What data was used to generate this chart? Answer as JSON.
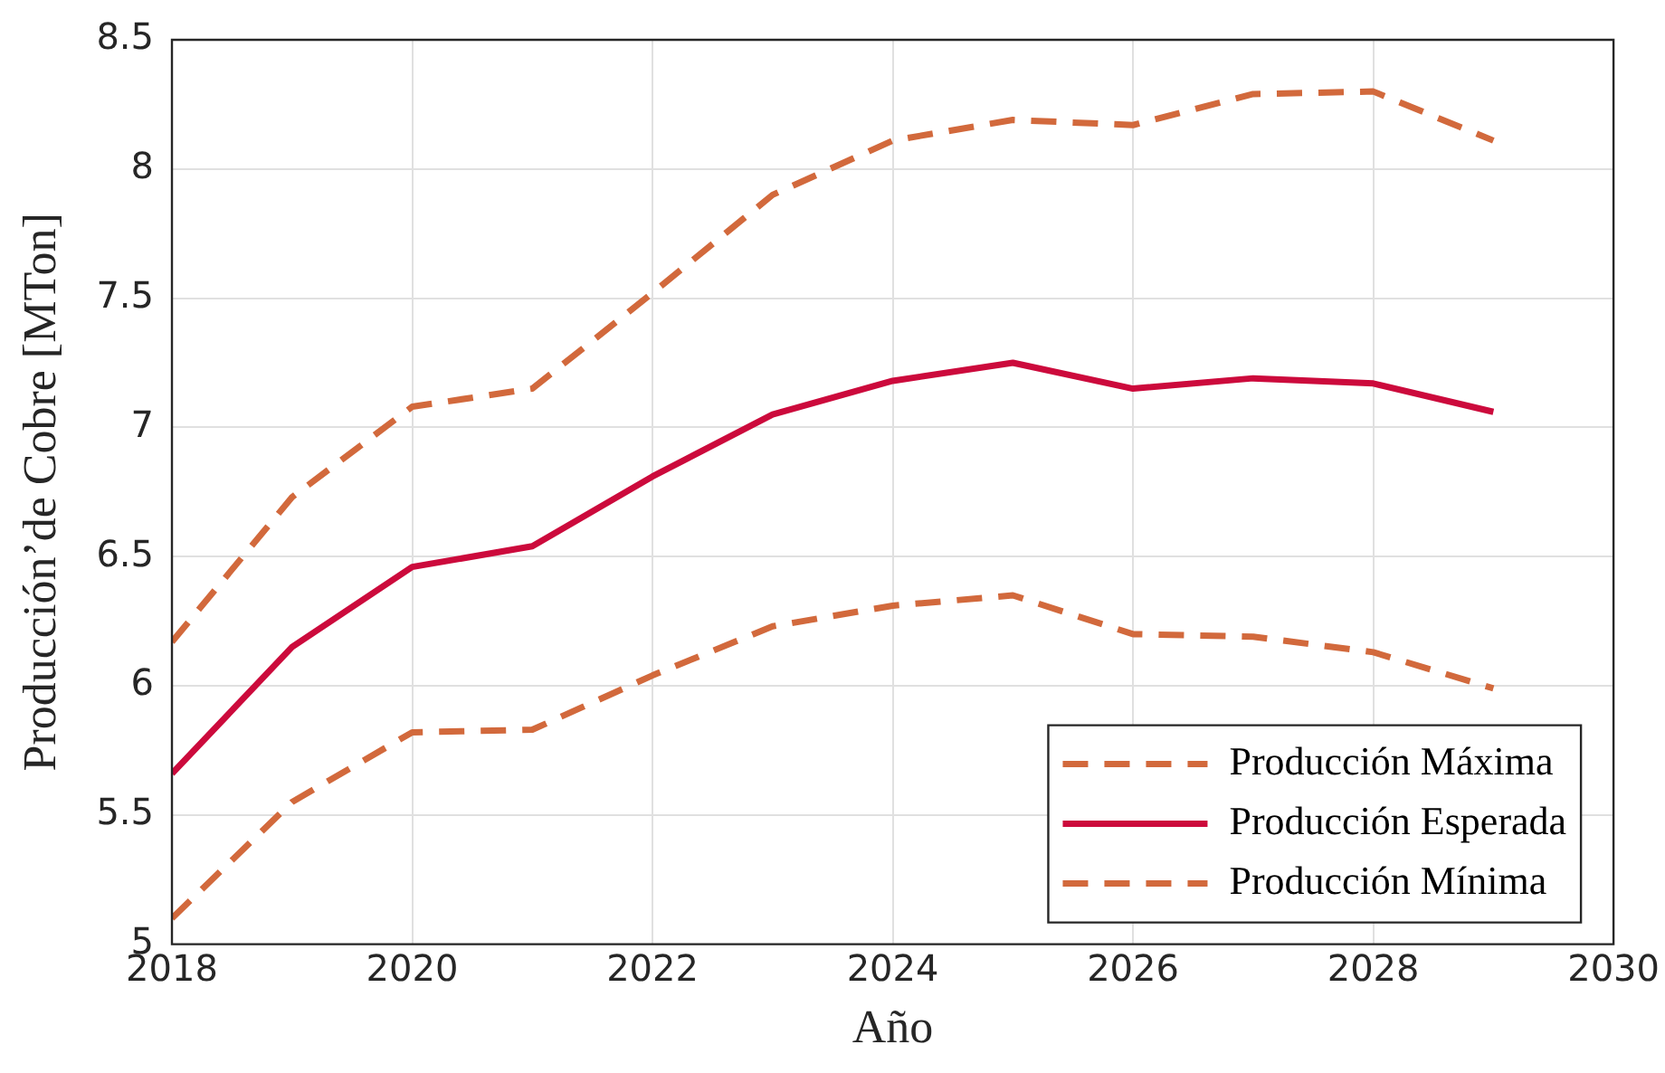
{
  "chart_data": {
    "type": "line",
    "xlabel": "Año",
    "ylabel": "Producción’de Cobre [MTon]",
    "x": [
      2018,
      2019,
      2020,
      2021,
      2022,
      2023,
      2024,
      2025,
      2026,
      2027,
      2028,
      2029
    ],
    "series": [
      {
        "name": "Producción Máxima",
        "color": "#d2693c",
        "line_style": "dashed",
        "values": [
          6.17,
          6.73,
          7.08,
          7.15,
          7.52,
          7.9,
          8.11,
          8.19,
          8.17,
          8.29,
          8.3,
          8.11
        ]
      },
      {
        "name": "Producción Esperada",
        "color": "#cc0a3c",
        "line_style": "solid",
        "values": [
          5.66,
          6.15,
          6.46,
          6.54,
          6.81,
          7.05,
          7.18,
          7.25,
          7.15,
          7.19,
          7.17,
          7.06
        ]
      },
      {
        "name": "Producción Mínima",
        "color": "#d2693c",
        "line_style": "dashed",
        "values": [
          5.1,
          5.55,
          5.82,
          5.83,
          6.04,
          6.23,
          6.31,
          6.35,
          6.2,
          6.19,
          6.13,
          5.99
        ]
      }
    ],
    "xlim": [
      2018,
      2030
    ],
    "xticks": [
      2018,
      2020,
      2022,
      2024,
      2026,
      2028,
      2030
    ],
    "ylim": [
      5,
      8.5
    ],
    "yticks": [
      5,
      5.5,
      6,
      6.5,
      7,
      7.5,
      8,
      8.5
    ],
    "grid": true,
    "legend": "bottom right",
    "marker": "none"
  }
}
